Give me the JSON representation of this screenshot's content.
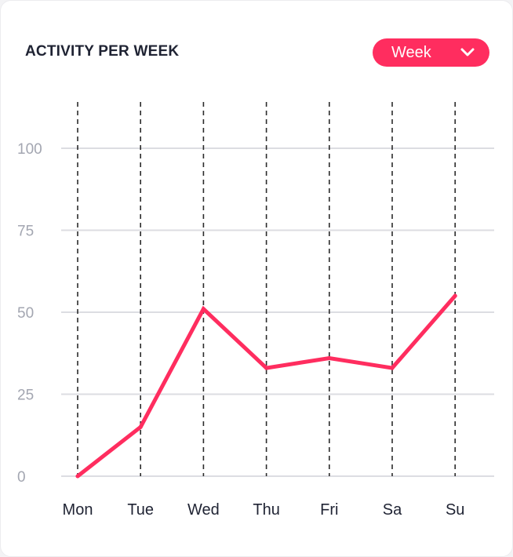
{
  "card": {
    "title": "ACTIVITY PER WEEK"
  },
  "period_select": {
    "selected": "Week",
    "icon": "chevron-down-icon"
  },
  "colors": {
    "accent": "#ff2d5f",
    "line": "#ff2d5f",
    "grid": "#dcdde2",
    "dashed": "#2b2b2b",
    "tick_y": "#a3a6b1",
    "tick_x": "#1f2333"
  },
  "chart_data": {
    "type": "line",
    "title": "ACTIVITY PER WEEK",
    "xlabel": "",
    "ylabel": "",
    "categories": [
      "Mon",
      "Tue",
      "Wed",
      "Thu",
      "Fri",
      "Sa",
      "Su"
    ],
    "series": [
      {
        "values": [
          0,
          15,
          51,
          33,
          36,
          33,
          55
        ]
      }
    ],
    "yticks": [
      0,
      25,
      50,
      75,
      100
    ],
    "ylim": [
      0,
      100
    ],
    "grid": "horizontal solid lines, vertical dashed lines",
    "legend": "none"
  }
}
